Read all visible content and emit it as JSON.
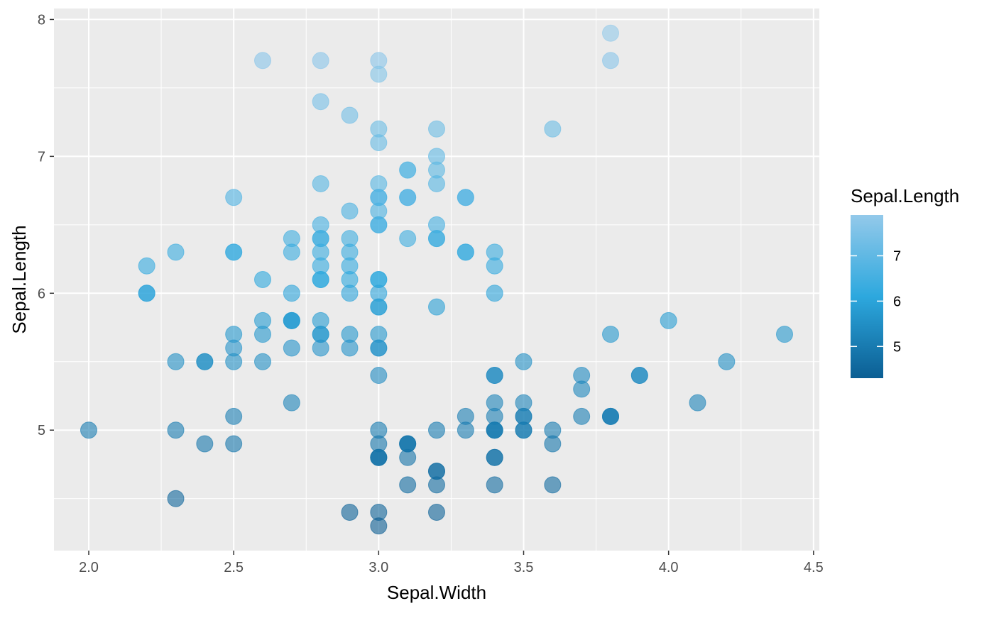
{
  "chart_data": {
    "type": "scatter",
    "xlabel": "Sepal.Width",
    "ylabel": "Sepal.Length",
    "xlim": [
      1.88,
      4.52
    ],
    "ylim": [
      4.12,
      8.08
    ],
    "x_ticks": [
      2.0,
      2.5,
      3.0,
      3.5,
      4.0,
      4.5
    ],
    "x_tick_labels": [
      "2.0",
      "2.5",
      "3.0",
      "3.5",
      "4.0",
      "4.5"
    ],
    "y_ticks": [
      5,
      6,
      7,
      8
    ],
    "y_tick_labels": [
      "5",
      "6",
      "7",
      "8"
    ],
    "grid": true,
    "legend": {
      "title": "Sepal.Length",
      "placement": "right",
      "type": "colorbar",
      "range": [
        4.3,
        7.9
      ],
      "ticks": [
        5,
        6,
        7
      ],
      "tick_labels": [
        "5",
        "6",
        "7"
      ],
      "color_low": "#0B5E93",
      "color_mid": "#2DA8DE",
      "color_high": "#93C9EA"
    },
    "point_opacity": 0.6,
    "panel_background": "#EBEBEB",
    "points": [
      [
        2.0,
        5.0
      ],
      [
        2.2,
        6.2
      ],
      [
        2.2,
        6.0
      ],
      [
        2.2,
        6.0
      ],
      [
        2.3,
        6.3
      ],
      [
        2.3,
        5.5
      ],
      [
        2.3,
        5.0
      ],
      [
        2.3,
        4.5
      ],
      [
        2.4,
        5.5
      ],
      [
        2.4,
        5.5
      ],
      [
        2.4,
        4.9
      ],
      [
        2.5,
        6.7
      ],
      [
        2.5,
        6.3
      ],
      [
        2.5,
        6.3
      ],
      [
        2.5,
        5.7
      ],
      [
        2.5,
        5.6
      ],
      [
        2.5,
        5.5
      ],
      [
        2.5,
        5.1
      ],
      [
        2.5,
        4.9
      ],
      [
        2.6,
        7.7
      ],
      [
        2.6,
        6.1
      ],
      [
        2.6,
        5.8
      ],
      [
        2.6,
        5.7
      ],
      [
        2.6,
        5.5
      ],
      [
        2.7,
        6.4
      ],
      [
        2.7,
        6.3
      ],
      [
        2.7,
        6.0
      ],
      [
        2.7,
        5.8
      ],
      [
        2.7,
        5.8
      ],
      [
        2.7,
        5.8
      ],
      [
        2.7,
        5.6
      ],
      [
        2.7,
        5.2
      ],
      [
        2.8,
        7.7
      ],
      [
        2.8,
        7.4
      ],
      [
        2.8,
        6.8
      ],
      [
        2.8,
        6.5
      ],
      [
        2.8,
        6.4
      ],
      [
        2.8,
        6.4
      ],
      [
        2.8,
        6.3
      ],
      [
        2.8,
        6.2
      ],
      [
        2.8,
        6.1
      ],
      [
        2.8,
        6.1
      ],
      [
        2.8,
        5.8
      ],
      [
        2.8,
        5.7
      ],
      [
        2.8,
        5.7
      ],
      [
        2.8,
        5.6
      ],
      [
        2.9,
        7.3
      ],
      [
        2.9,
        6.6
      ],
      [
        2.9,
        6.4
      ],
      [
        2.9,
        6.3
      ],
      [
        2.9,
        6.2
      ],
      [
        2.9,
        6.1
      ],
      [
        2.9,
        6.0
      ],
      [
        2.9,
        5.7
      ],
      [
        2.9,
        5.6
      ],
      [
        2.9,
        4.4
      ],
      [
        3.0,
        7.7
      ],
      [
        3.0,
        7.6
      ],
      [
        3.0,
        7.2
      ],
      [
        3.0,
        7.1
      ],
      [
        3.0,
        6.8
      ],
      [
        3.0,
        6.7
      ],
      [
        3.0,
        6.7
      ],
      [
        3.0,
        6.6
      ],
      [
        3.0,
        6.5
      ],
      [
        3.0,
        6.5
      ],
      [
        3.0,
        6.1
      ],
      [
        3.0,
        6.1
      ],
      [
        3.0,
        6.0
      ],
      [
        3.0,
        5.9
      ],
      [
        3.0,
        5.9
      ],
      [
        3.0,
        5.7
      ],
      [
        3.0,
        5.6
      ],
      [
        3.0,
        5.6
      ],
      [
        3.0,
        5.4
      ],
      [
        3.0,
        5.0
      ],
      [
        3.0,
        4.9
      ],
      [
        3.0,
        4.8
      ],
      [
        3.0,
        4.8
      ],
      [
        3.0,
        4.8
      ],
      [
        3.0,
        4.4
      ],
      [
        3.0,
        4.3
      ],
      [
        3.1,
        6.9
      ],
      [
        3.1,
        6.9
      ],
      [
        3.1,
        6.7
      ],
      [
        3.1,
        6.7
      ],
      [
        3.1,
        6.4
      ],
      [
        3.1,
        4.9
      ],
      [
        3.1,
        4.9
      ],
      [
        3.1,
        4.9
      ],
      [
        3.1,
        4.8
      ],
      [
        3.1,
        4.6
      ],
      [
        3.2,
        7.2
      ],
      [
        3.2,
        7.0
      ],
      [
        3.2,
        6.9
      ],
      [
        3.2,
        6.8
      ],
      [
        3.2,
        6.5
      ],
      [
        3.2,
        6.4
      ],
      [
        3.2,
        6.4
      ],
      [
        3.2,
        5.9
      ],
      [
        3.2,
        5.0
      ],
      [
        3.2,
        4.7
      ],
      [
        3.2,
        4.7
      ],
      [
        3.2,
        4.6
      ],
      [
        3.2,
        4.4
      ],
      [
        3.3,
        6.7
      ],
      [
        3.3,
        6.7
      ],
      [
        3.3,
        6.3
      ],
      [
        3.3,
        6.3
      ],
      [
        3.3,
        5.1
      ],
      [
        3.3,
        5.0
      ],
      [
        3.4,
        6.3
      ],
      [
        3.4,
        6.2
      ],
      [
        3.4,
        6.0
      ],
      [
        3.4,
        5.4
      ],
      [
        3.4,
        5.4
      ],
      [
        3.4,
        5.2
      ],
      [
        3.4,
        5.1
      ],
      [
        3.4,
        5.0
      ],
      [
        3.4,
        5.0
      ],
      [
        3.4,
        5.0
      ],
      [
        3.4,
        4.8
      ],
      [
        3.4,
        4.8
      ],
      [
        3.4,
        4.6
      ],
      [
        3.5,
        5.5
      ],
      [
        3.5,
        5.2
      ],
      [
        3.5,
        5.1
      ],
      [
        3.5,
        5.1
      ],
      [
        3.5,
        5.0
      ],
      [
        3.5,
        5.0
      ],
      [
        3.6,
        7.2
      ],
      [
        3.6,
        5.0
      ],
      [
        3.6,
        4.9
      ],
      [
        3.6,
        4.6
      ],
      [
        3.7,
        5.4
      ],
      [
        3.7,
        5.3
      ],
      [
        3.7,
        5.1
      ],
      [
        3.8,
        7.9
      ],
      [
        3.8,
        7.7
      ],
      [
        3.8,
        5.7
      ],
      [
        3.8,
        5.1
      ],
      [
        3.8,
        5.1
      ],
      [
        3.8,
        5.1
      ],
      [
        3.9,
        5.4
      ],
      [
        3.9,
        5.4
      ],
      [
        4.0,
        5.8
      ],
      [
        4.1,
        5.2
      ],
      [
        4.2,
        5.5
      ],
      [
        4.4,
        5.7
      ]
    ]
  }
}
